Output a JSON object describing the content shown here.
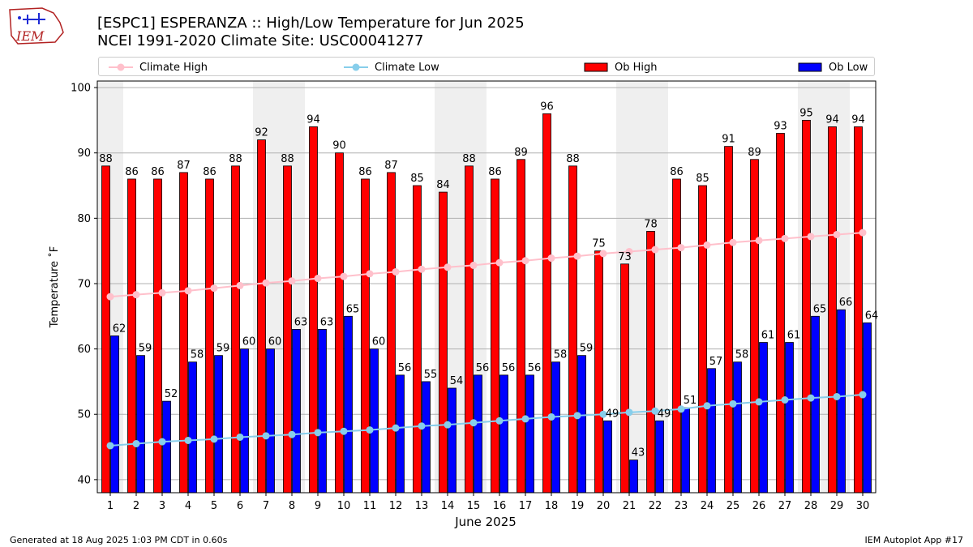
{
  "header": {
    "title_line1": "[ESPC1] ESPERANZA :: High/Low Temperature for Jun 2025",
    "title_line2": "NCEI 1991-2020 Climate Site: USC00041277",
    "logo_text": "IEM"
  },
  "legend": {
    "items": [
      {
        "label": "Climate High",
        "kind": "line",
        "color": "#ffc0cb"
      },
      {
        "label": "Climate Low",
        "kind": "line",
        "color": "#87ceeb"
      },
      {
        "label": "Ob High",
        "kind": "bar",
        "color": "#ff0000"
      },
      {
        "label": "Ob Low",
        "kind": "bar",
        "color": "#0000ff"
      }
    ]
  },
  "footer": {
    "left": "Generated at 18 Aug 2025 1:03 PM CDT in 0.60s",
    "right": "IEM Autoplot App #17"
  },
  "chart_data": {
    "type": "bar",
    "xlabel": "June 2025",
    "ylabel": "Temperature ˚F",
    "ylim": [
      38,
      101
    ],
    "yticks": [
      40,
      50,
      60,
      70,
      80,
      90,
      100
    ],
    "grid": true,
    "legend_position": "top",
    "x": [
      1,
      2,
      3,
      4,
      5,
      6,
      7,
      8,
      9,
      10,
      11,
      12,
      13,
      14,
      15,
      16,
      17,
      18,
      19,
      20,
      21,
      22,
      23,
      24,
      25,
      26,
      27,
      28,
      29,
      30
    ],
    "weekend_days": [
      1,
      7,
      8,
      14,
      15,
      21,
      22,
      28,
      29
    ],
    "series": [
      {
        "name": "Ob High",
        "kind": "bar",
        "color": "#ff0000",
        "values": [
          88,
          86,
          86,
          87,
          86,
          88,
          92,
          88,
          94,
          90,
          86,
          87,
          85,
          84,
          88,
          86,
          89,
          96,
          88,
          75,
          73,
          78,
          86,
          85,
          91,
          89,
          93,
          95,
          94,
          94
        ]
      },
      {
        "name": "Ob Low",
        "kind": "bar",
        "color": "#0000ff",
        "values": [
          62,
          59,
          52,
          58,
          59,
          60,
          60,
          63,
          63,
          65,
          60,
          56,
          55,
          54,
          56,
          56,
          56,
          58,
          59,
          49,
          43,
          49,
          51,
          57,
          58,
          61,
          61,
          65,
          66,
          64
        ]
      },
      {
        "name": "Climate High",
        "kind": "line",
        "color": "#ffc0cb",
        "values": [
          68.0,
          68.3,
          68.6,
          68.9,
          69.3,
          69.7,
          70.1,
          70.4,
          70.8,
          71.1,
          71.5,
          71.8,
          72.2,
          72.5,
          72.8,
          73.2,
          73.5,
          73.9,
          74.2,
          74.6,
          74.9,
          75.2,
          75.5,
          75.9,
          76.3,
          76.6,
          76.9,
          77.2,
          77.5,
          77.8
        ]
      },
      {
        "name": "Climate Low",
        "kind": "line",
        "color": "#87ceeb",
        "values": [
          45.2,
          45.5,
          45.8,
          46.0,
          46.2,
          46.5,
          46.7,
          46.9,
          47.2,
          47.4,
          47.6,
          47.9,
          48.2,
          48.4,
          48.7,
          49.0,
          49.3,
          49.6,
          49.8,
          50.0,
          50.3,
          50.5,
          50.8,
          51.3,
          51.6,
          51.9,
          52.2,
          52.5,
          52.7,
          53.0
        ]
      }
    ]
  }
}
